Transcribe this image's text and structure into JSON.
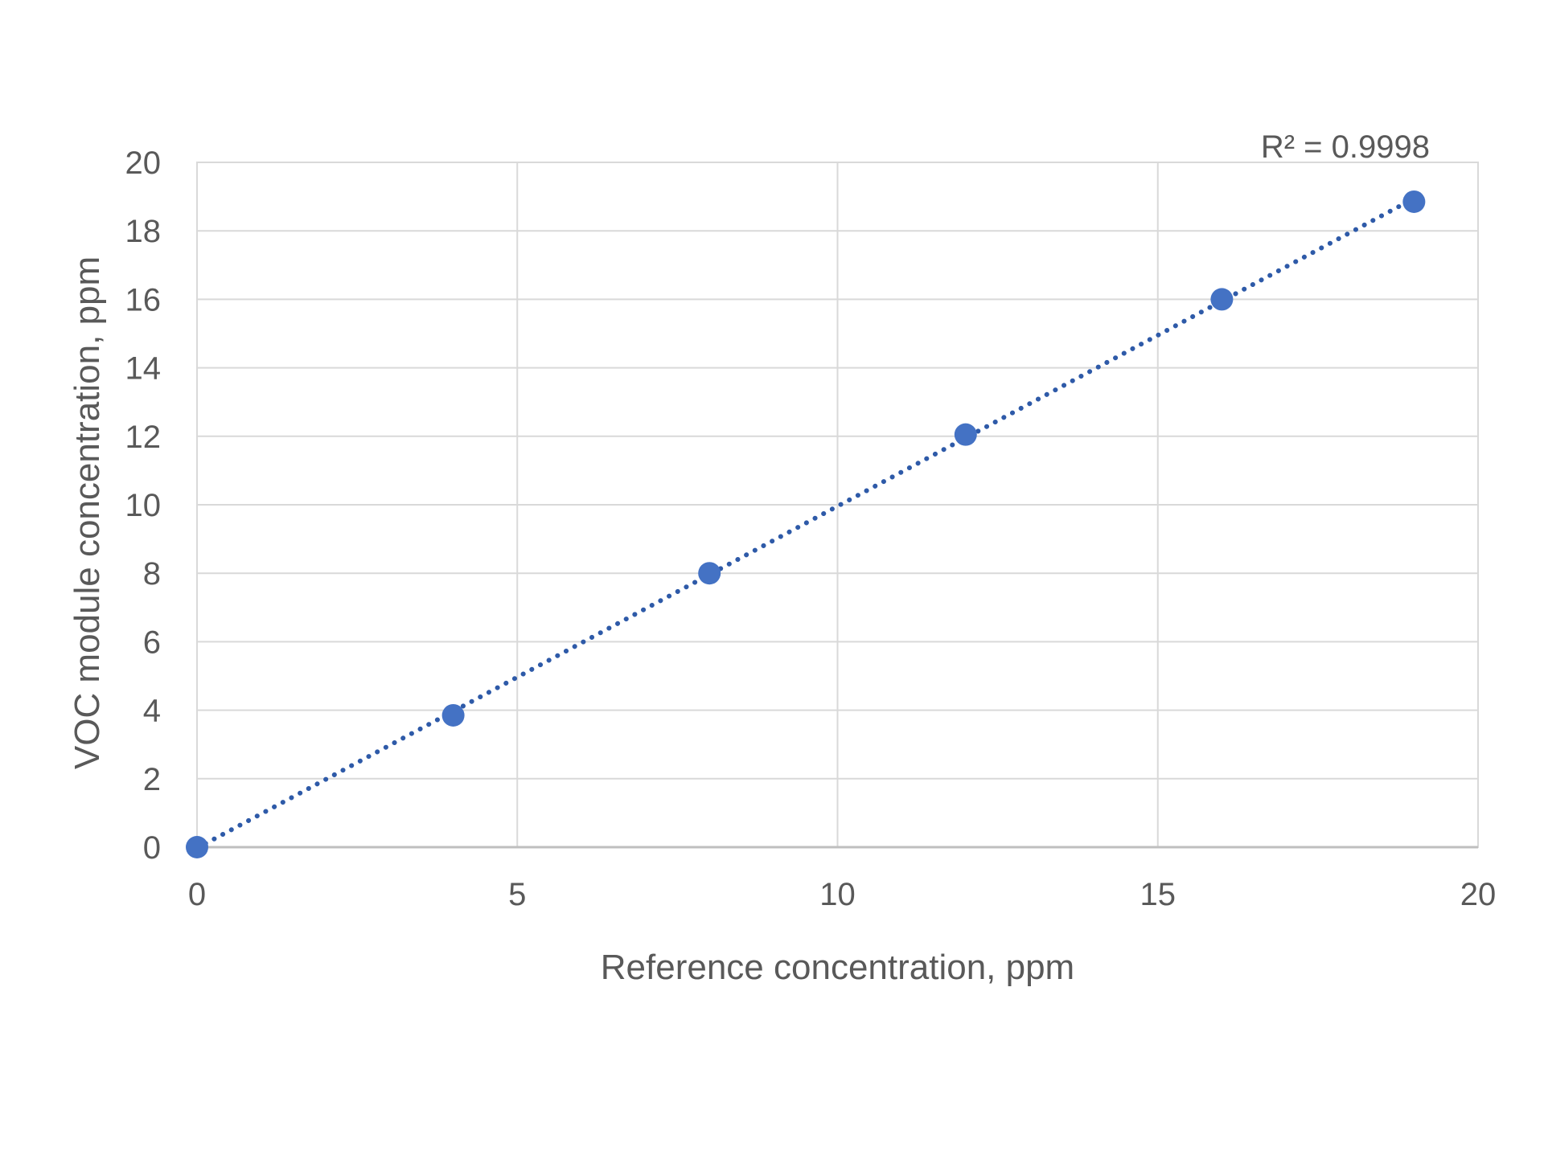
{
  "chart_data": {
    "type": "scatter",
    "title": "",
    "xlabel": "Reference concentration, ppm",
    "ylabel": "VOC  module concentration, ppm",
    "xlim": [
      0,
      20
    ],
    "ylim": [
      0,
      20
    ],
    "x_ticks": [
      "0",
      "5",
      "10",
      "15",
      "20"
    ],
    "y_ticks": [
      "0",
      "2",
      "4",
      "6",
      "8",
      "10",
      "12",
      "14",
      "16",
      "18",
      "20"
    ],
    "grid": true,
    "legend": "none",
    "marker_color": "#4472c4",
    "trendline": {
      "type": "linear",
      "style": "dotted",
      "color": "#2e5aa8",
      "x_range": [
        0,
        19
      ],
      "r_squared_label": "R² = 0.9998"
    },
    "series": [
      {
        "points": [
          {
            "x": 0,
            "y": 0
          },
          {
            "x": 4,
            "y": 3.85
          },
          {
            "x": 8,
            "y": 8.0
          },
          {
            "x": 12,
            "y": 12.05
          },
          {
            "x": 16,
            "y": 16.0
          },
          {
            "x": 19,
            "y": 18.85
          }
        ]
      }
    ]
  }
}
